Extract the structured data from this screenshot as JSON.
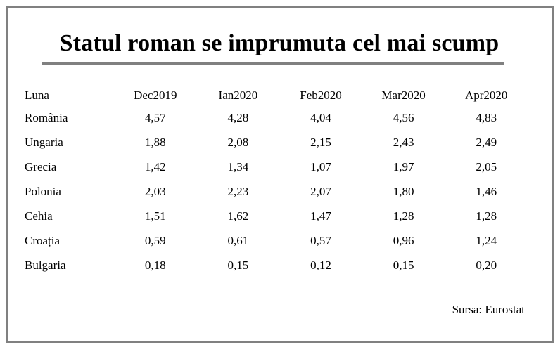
{
  "title": "Statul roman se imprumuta cel mai scump",
  "table": {
    "headers": [
      "Luna",
      "Dec2019",
      "Ian2020",
      "Feb2020",
      "Mar2020",
      "Apr2020"
    ],
    "rows": [
      {
        "country": "România",
        "values": [
          "4,57",
          "4,28",
          "4,04",
          "4,56",
          "4,83"
        ]
      },
      {
        "country": "Ungaria",
        "values": [
          "1,88",
          "2,08",
          "2,15",
          "2,43",
          "2,49"
        ]
      },
      {
        "country": "Grecia",
        "values": [
          "1,42",
          "1,34",
          "1,07",
          "1,97",
          "2,05"
        ]
      },
      {
        "country": "Polonia",
        "values": [
          "2,03",
          "2,23",
          "2,07",
          "1,80",
          "1,46"
        ]
      },
      {
        "country": "Cehia",
        "values": [
          "1,51",
          "1,62",
          "1,47",
          "1,28",
          "1,28"
        ]
      },
      {
        "country": "Croația",
        "values": [
          "0,59",
          "0,61",
          "0,57",
          "0,96",
          "1,24"
        ]
      },
      {
        "country": "Bulgaria",
        "values": [
          "0,18",
          "0,15",
          "0,12",
          "0,15",
          "0,20"
        ]
      }
    ]
  },
  "source": "Sursa: Eurostat",
  "colors": {
    "frame": "#808080",
    "rule": "#808080",
    "text": "#000000"
  }
}
